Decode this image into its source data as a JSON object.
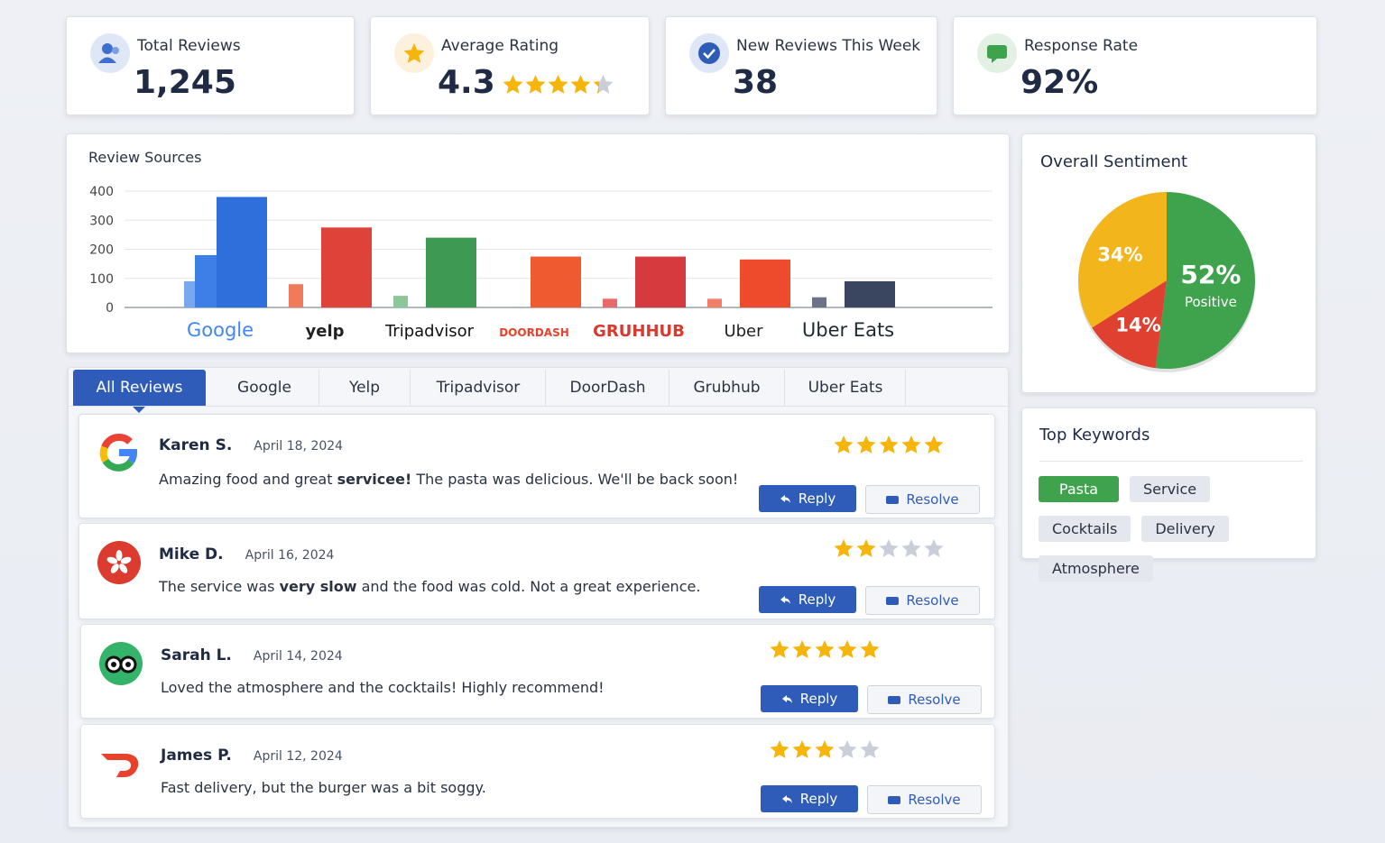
{
  "kpis": [
    {
      "label": "Total Reviews",
      "value": "1,245"
    },
    {
      "label": "Average Rating",
      "value": 4.3
    },
    {
      "label": "New Reviews This Week",
      "value": 38
    },
    {
      "label": "Response Rate",
      "value": "92%"
    }
  ],
  "chart_data": [
    {
      "type": "bar",
      "title": "Review Sources",
      "categories": [
        "Google",
        "yelp",
        "Tripadvisor",
        "DOORDASH",
        "GRUHHUB",
        "Uber",
        "Uber Eats"
      ],
      "category_colors": [
        "#4285f4",
        "#222222",
        "#111111",
        "#e8412c",
        "#d93a2f",
        "#222222",
        "#1f2a30"
      ],
      "series": [
        {
          "colors": [
            "#7aa8ec",
            "#f07a5a",
            "#8cc79a",
            null,
            "#e86a6a",
            "#f28068",
            "#6a7388"
          ],
          "values": [
            90,
            80,
            40,
            null,
            30,
            30,
            35
          ]
        },
        {
          "colors": [
            "#3d7fe6",
            null,
            null,
            null,
            null,
            null,
            null
          ],
          "values": [
            180,
            null,
            null,
            null,
            null,
            null,
            null
          ]
        },
        {
          "colors": [
            "#2f6fdc",
            "#df4238",
            "#3e9a52",
            "#f05a30",
            "#d63a3f",
            "#ee4a2c",
            "#3a4560"
          ],
          "values": [
            380,
            275,
            240,
            175,
            175,
            165,
            90
          ]
        }
      ],
      "ylim": [
        0,
        400
      ],
      "yticks": [
        0,
        100,
        200,
        300,
        400
      ],
      "grid": true
    },
    {
      "type": "pie",
      "title": "Overall Sentiment",
      "categories": [
        "Positive",
        null,
        null
      ],
      "values": [
        52,
        14,
        34
      ],
      "value_labels": [
        "52%",
        "14%",
        "34%"
      ],
      "colors": [
        "#3fa34d",
        "#e0402f",
        "#f2b51c"
      ]
    }
  ],
  "tabs": [
    "All Reviews",
    "Google",
    "Yelp",
    "Tripadvisor",
    "DoorDash",
    "Grubhub",
    "Uber Eats"
  ],
  "actions": {
    "reply": "Reply",
    "resolve": "Resolve"
  },
  "reviews": [
    {
      "name": "Karen S.",
      "date": "April 18, 2024",
      "rating": 5,
      "text": [
        "Amazing food and great ",
        "servicee!",
        " The pasta was delicious. We'll be back soon!"
      ]
    },
    {
      "name": "Mike D.",
      "date": "April 16, 2024",
      "rating": 2,
      "text": [
        "The service was ",
        "very slow",
        " and the food was cold. Not a great experience."
      ]
    },
    {
      "name": "Sarah L.",
      "date": "April 14, 2024",
      "rating": 5,
      "text": [
        "Loved the atmosphere and the cocktails! Highly recommend!"
      ]
    },
    {
      "name": "James P.",
      "date": "April 12, 2024",
      "rating": 3,
      "text": [
        "Fast delivery, but the burger was a bit soggy."
      ]
    }
  ],
  "keywords": {
    "title": "Top Keywords",
    "items": [
      "Pasta",
      "Service",
      "Cocktails",
      "Delivery",
      "Atmosphere"
    ]
  }
}
